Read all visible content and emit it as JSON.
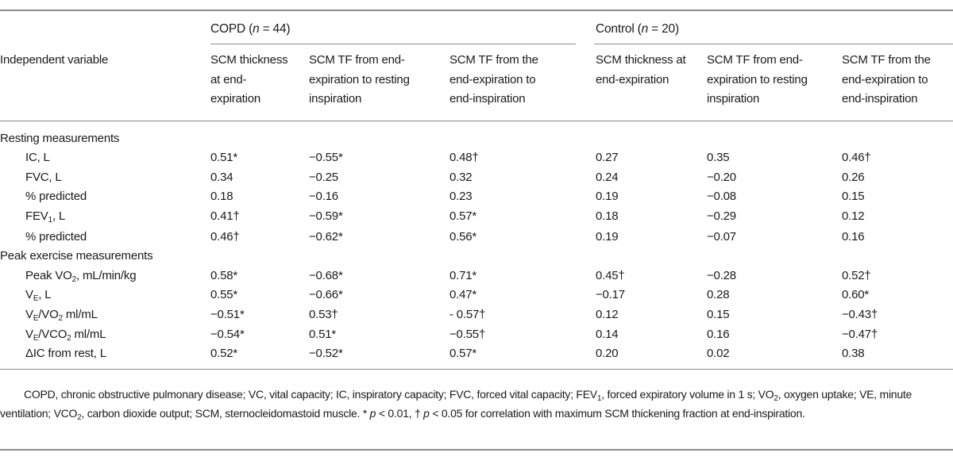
{
  "groups": {
    "copd": "COPD (n = 44)",
    "control": "Control (n = 20)"
  },
  "header": {
    "independent_variable": "Independent variable",
    "columns": [
      [
        "SCM thickness",
        "at end-",
        "expiration"
      ],
      [
        "SCM TF from end-",
        "expiration to resting",
        "inspiration"
      ],
      [
        "SCM TF from the",
        "end-expiration to",
        "end-inspiration"
      ],
      [
        "SCM thickness at",
        "end-expiration"
      ],
      [
        "SCM TF from end-",
        "expiration to resting",
        "inspiration"
      ],
      [
        "SCM TF from the",
        "end-expiration to",
        "end-inspiration"
      ]
    ]
  },
  "sections": {
    "resting": "Resting measurements",
    "peak": "Peak exercise measurements"
  },
  "rows": [
    {
      "label": "IC, L",
      "values": [
        "0.51*",
        "−0.55*",
        "0.48†",
        "0.27",
        "0.35",
        "0.46†"
      ]
    },
    {
      "label": "FVC, L",
      "values": [
        "0.34",
        "−0.25",
        "0.32",
        "0.24",
        "−0.20",
        "0.26"
      ]
    },
    {
      "label": "% predicted",
      "values": [
        "0.18",
        "−0.16",
        "0.23",
        "0.19",
        "−0.08",
        "0.15"
      ]
    },
    {
      "label": "FEV1, L",
      "values": [
        "0.41†",
        "−0.59*",
        "0.57*",
        "0.18",
        "−0.29",
        "0.12"
      ]
    },
    {
      "label": "% predicted",
      "values": [
        "0.46†",
        "−0.62*",
        "0.56*",
        "0.19",
        "−0.07",
        "0.16"
      ]
    },
    {
      "label": "Peak VO2, mL/min/kg",
      "values": [
        "0.58*",
        "−0.68*",
        "0.71*",
        "0.45†",
        "−0.28",
        "0.52†"
      ]
    },
    {
      "label": "VE, L",
      "values": [
        "0.55*",
        "−0.66*",
        "0.47*",
        "−0.17",
        "0.28",
        "0.60*"
      ]
    },
    {
      "label": "VE/VO2 ml/mL",
      "values": [
        "−0.51*",
        "0.53†",
        "- 0.57†",
        "0.12",
        "0.15",
        "−0.43†"
      ]
    },
    {
      "label": "VE/VCO2 ml/mL",
      "values": [
        "−0.54*",
        "0.51*",
        "−0.55†",
        "0.14",
        "0.16",
        "−0.47†"
      ]
    },
    {
      "label": "ΔIC from rest, L",
      "values": [
        "0.52*",
        "−0.52*",
        "0.57*",
        "0.20",
        "0.02",
        "0.38"
      ]
    }
  ],
  "footnote": "COPD, chronic obstructive pulmonary disease; VC, vital capacity; IC, inspiratory capacity; FVC, forced vital capacity; FEV1, forced expiratory volume in 1 s; VO2, oxygen uptake; VE, minute ventilation; VCO2, carbon dioxide output; SCM, sternocleidomastoid muscle. * p < 0.01, † p < 0.05 for correlation with maximum SCM thickening fraction at end-inspiration."
}
